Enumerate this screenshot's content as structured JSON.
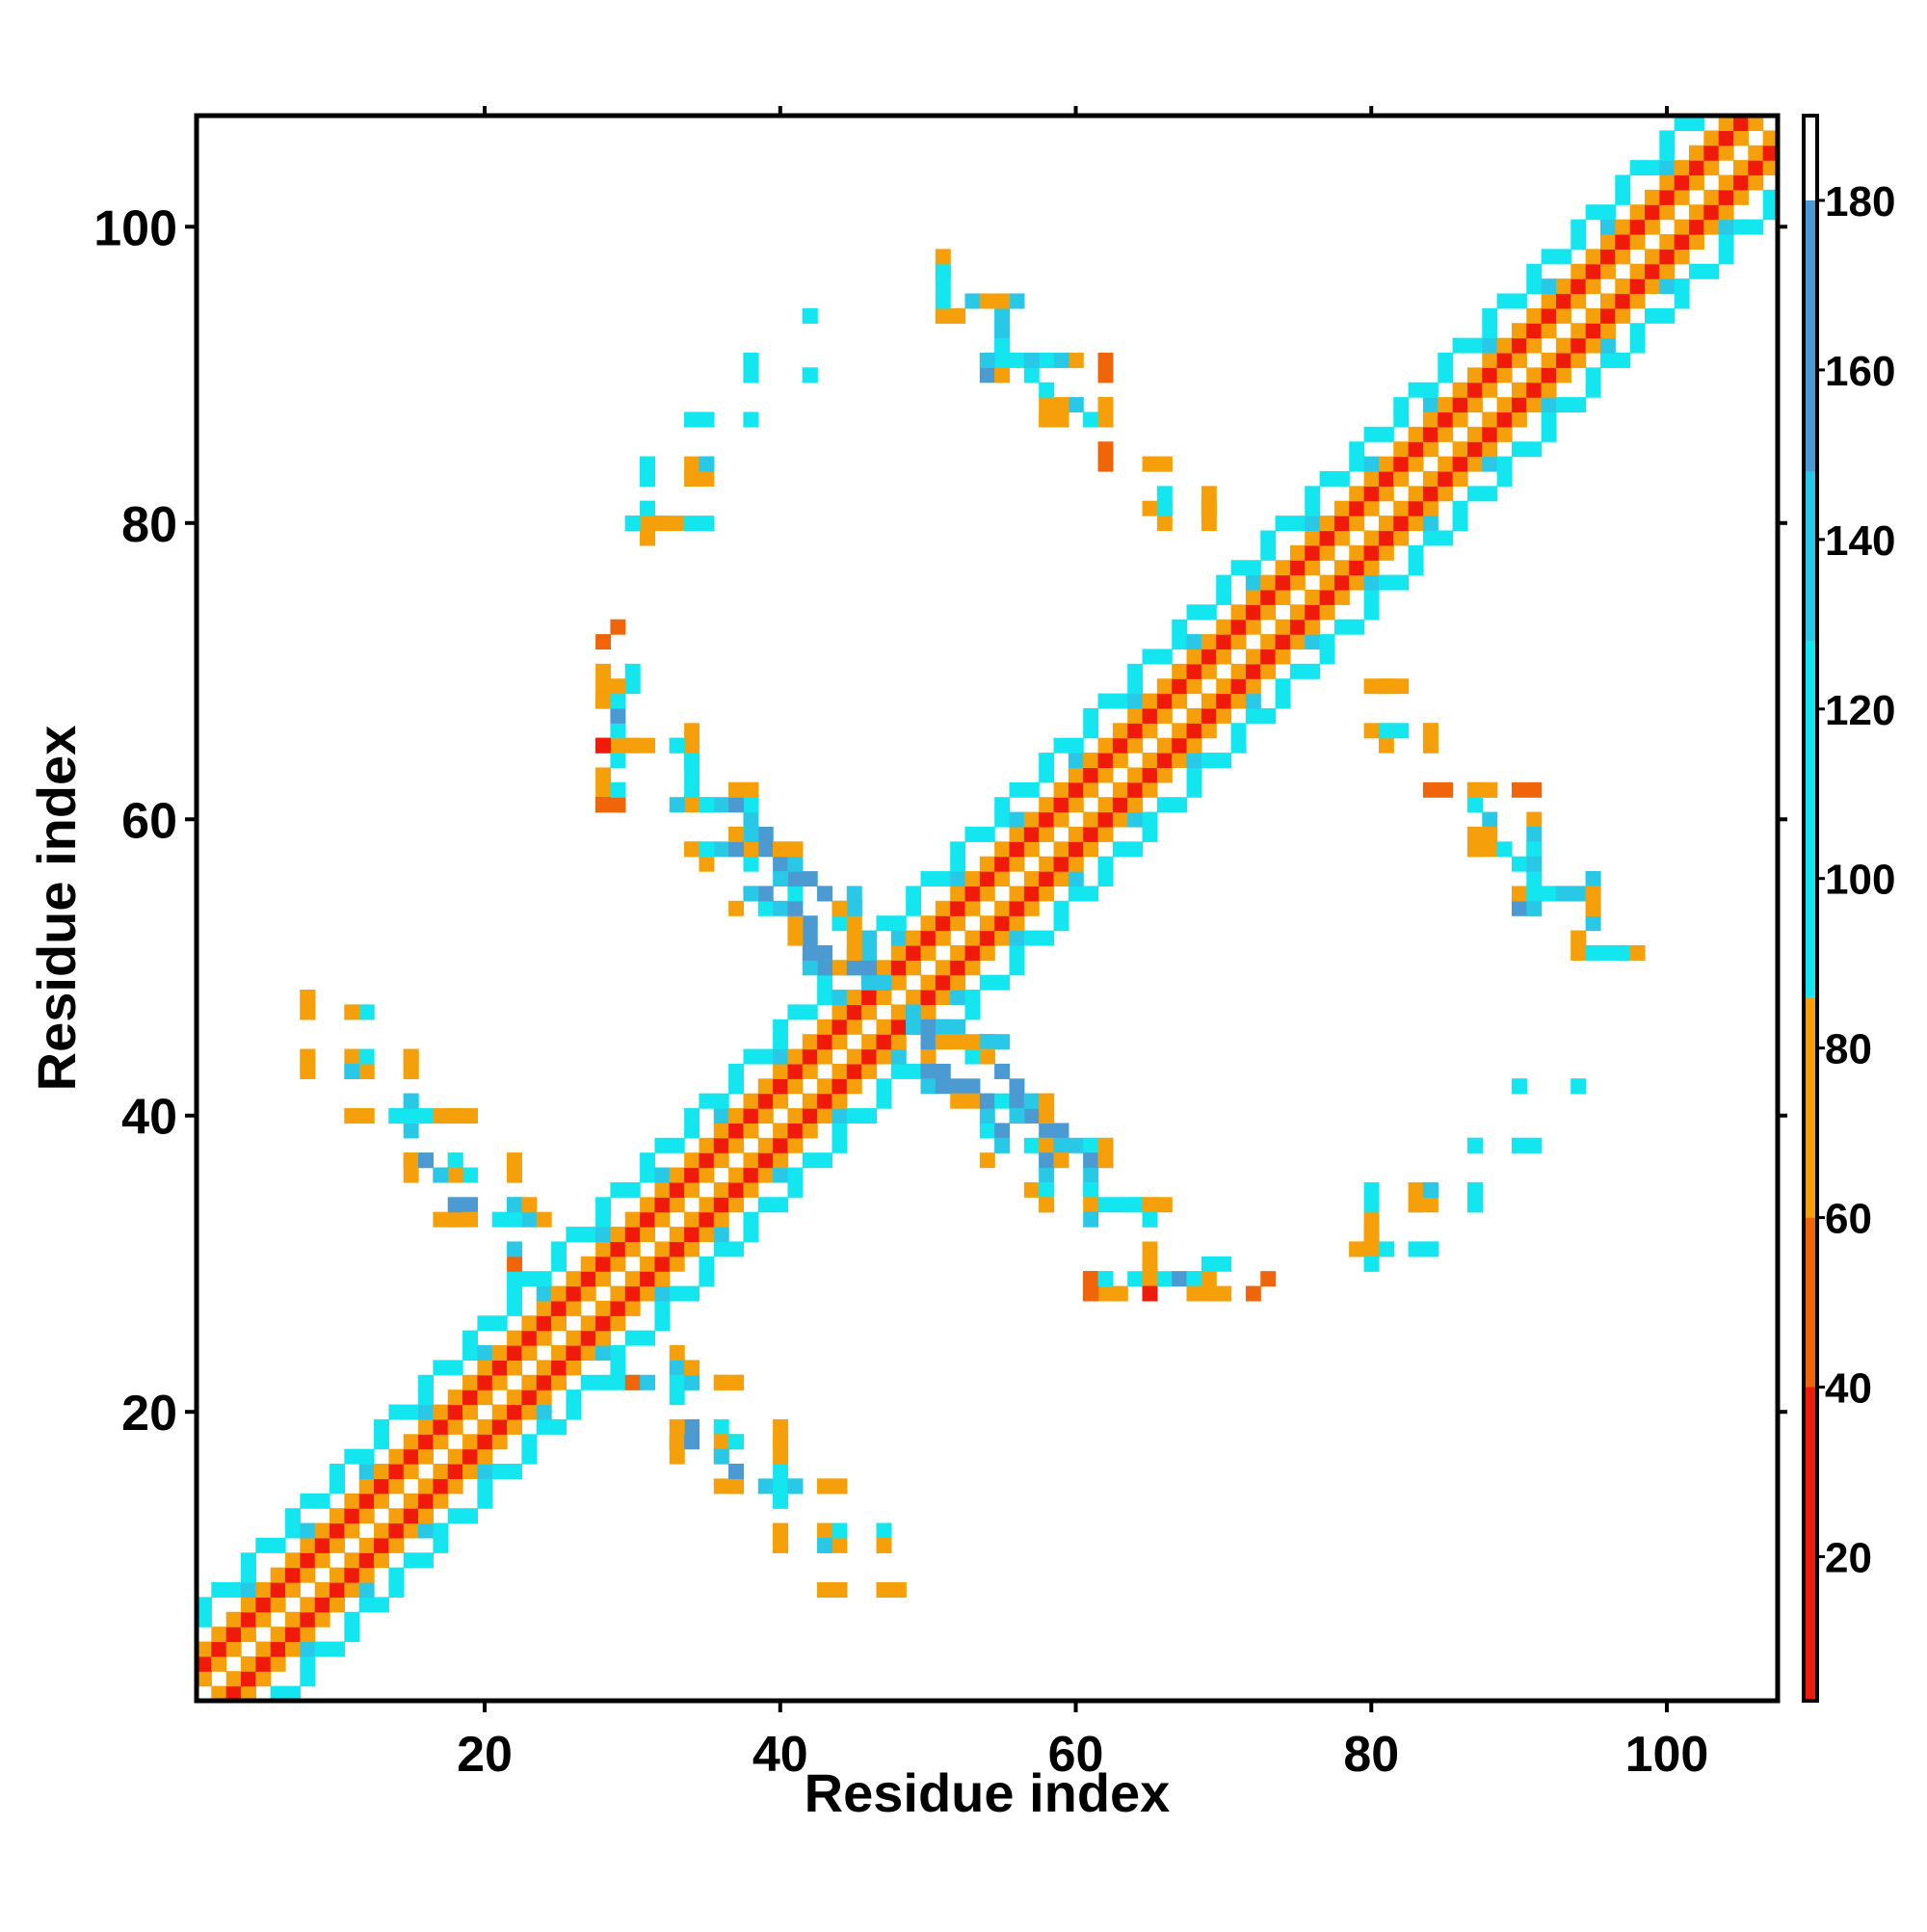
{
  "chart_data": {
    "type": "heatmap",
    "title": "",
    "xlabel": "Residue index",
    "ylabel": "Residue index",
    "xlim": [
      1,
      107
    ],
    "ylim": [
      1,
      107
    ],
    "x_ticks": [
      20,
      40,
      60,
      80,
      100
    ],
    "y_ticks": [
      20,
      40,
      60,
      80,
      100
    ],
    "grid": false,
    "colorbar": {
      "range": [
        3,
        190
      ],
      "ticks": [
        20,
        40,
        60,
        80,
        100,
        120,
        140,
        160,
        180
      ],
      "bands": [
        {
          "from": 3,
          "to": 40,
          "color": "#f01a0a"
        },
        {
          "from": 40,
          "to": 60,
          "color": "#f0640a"
        },
        {
          "from": 60,
          "to": 86,
          "color": "#f5a00a"
        },
        {
          "from": 86,
          "to": 128,
          "color": "#14e6f0"
        },
        {
          "from": 128,
          "to": 148,
          "color": "#28c8e6"
        },
        {
          "from": 148,
          "to": 180,
          "color": "#4b9bd2"
        },
        {
          "from": 180,
          "to": 190,
          "color": "#ffffff"
        }
      ]
    },
    "band_colors": [
      "#f01a0a",
      "#f0640a",
      "#f5a00a",
      "#14e6f0",
      "#28c8e6",
      "#4b9bd2"
    ],
    "diagonal_bands": [
      {
        "x_from": 1,
        "x_to": 107,
        "offsets": [
          -6,
          6
        ]
      }
    ],
    "points": [
      [
        28,
        72,
        1
      ],
      [
        28,
        69,
        2
      ],
      [
        28,
        68,
        1
      ],
      [
        29,
        68,
        3
      ],
      [
        30,
        69,
        3
      ],
      [
        29,
        67,
        3
      ],
      [
        28,
        65,
        0
      ],
      [
        29,
        65,
        2
      ],
      [
        30,
        65,
        3
      ],
      [
        31,
        65,
        2
      ],
      [
        33,
        65,
        4
      ],
      [
        34,
        65,
        2
      ],
      [
        34,
        64,
        3
      ],
      [
        28,
        62,
        2
      ],
      [
        29,
        62,
        3
      ],
      [
        28,
        61,
        0
      ],
      [
        29,
        61,
        0
      ],
      [
        34,
        62,
        3
      ],
      [
        35,
        61,
        4
      ],
      [
        36,
        61,
        4
      ],
      [
        37,
        61,
        3
      ],
      [
        38,
        62,
        3
      ],
      [
        37,
        62,
        4
      ],
      [
        38,
        61,
        3
      ],
      [
        34,
        58,
        2
      ],
      [
        35,
        58,
        4
      ],
      [
        36,
        58,
        4
      ],
      [
        37,
        58,
        3
      ],
      [
        38,
        58,
        2
      ],
      [
        39,
        58,
        5
      ],
      [
        40,
        58,
        2
      ],
      [
        41,
        58,
        2
      ],
      [
        37,
        59,
        3
      ],
      [
        38,
        59,
        5
      ],
      [
        39,
        59,
        5
      ],
      [
        40,
        57,
        5
      ],
      [
        41,
        57,
        3
      ],
      [
        42,
        56,
        5
      ],
      [
        43,
        55,
        4
      ],
      [
        44,
        54,
        4
      ],
      [
        45,
        54,
        5
      ],
      [
        38,
        55,
        3
      ],
      [
        37,
        54,
        2
      ],
      [
        39,
        54,
        3
      ],
      [
        40,
        54,
        4
      ],
      [
        41,
        54,
        4
      ],
      [
        42,
        53,
        5
      ],
      [
        44,
        53,
        3
      ],
      [
        42,
        52,
        5
      ],
      [
        43,
        51,
        5
      ],
      [
        43,
        50,
        4
      ],
      [
        44,
        50,
        2
      ],
      [
        45,
        51,
        4
      ],
      [
        46,
        51,
        4
      ],
      [
        46,
        49,
        5
      ],
      [
        47,
        49,
        4
      ],
      [
        8,
        48,
        2
      ],
      [
        8,
        47,
        2
      ],
      [
        11,
        47,
        3
      ],
      [
        12,
        47,
        2
      ],
      [
        8,
        44,
        2
      ],
      [
        8,
        43,
        2
      ],
      [
        11,
        44,
        2
      ],
      [
        12,
        43,
        2
      ],
      [
        11,
        43,
        4
      ],
      [
        15,
        44,
        2
      ],
      [
        15,
        43,
        2
      ],
      [
        11,
        40,
        2
      ],
      [
        12,
        40,
        2
      ],
      [
        14,
        40,
        4
      ],
      [
        15,
        41,
        3
      ],
      [
        15,
        40,
        5
      ],
      [
        16,
        40,
        3
      ],
      [
        18,
        40,
        2
      ],
      [
        19,
        40,
        2
      ],
      [
        15,
        37,
        2
      ],
      [
        16,
        37,
        5
      ],
      [
        17,
        36,
        2
      ],
      [
        18,
        37,
        2
      ],
      [
        19,
        36,
        3
      ],
      [
        22,
        37,
        2
      ],
      [
        22,
        36,
        2
      ],
      [
        19,
        34,
        5
      ],
      [
        18,
        33,
        2
      ],
      [
        19,
        33,
        2
      ],
      [
        21,
        33,
        3
      ],
      [
        22,
        34,
        3
      ],
      [
        23,
        33,
        4
      ],
      [
        24,
        33,
        2
      ],
      [
        22,
        30,
        4
      ],
      [
        29,
        22,
        3
      ],
      [
        30,
        22,
        1
      ],
      [
        31,
        22,
        4
      ],
      [
        33,
        22,
        3
      ],
      [
        34,
        22,
        4
      ],
      [
        34,
        23,
        2
      ],
      [
        36,
        22,
        2
      ],
      [
        37,
        22,
        2
      ],
      [
        33,
        18,
        2
      ],
      [
        34,
        18,
        5
      ],
      [
        33,
        17,
        2
      ],
      [
        36,
        18,
        2
      ],
      [
        37,
        18,
        3
      ],
      [
        36,
        17,
        4
      ],
      [
        40,
        18,
        2
      ],
      [
        40,
        17,
        2
      ],
      [
        36,
        15,
        2
      ],
      [
        37,
        15,
        2
      ],
      [
        37,
        16,
        5
      ],
      [
        39,
        15,
        4
      ],
      [
        40,
        15,
        3
      ],
      [
        40,
        14,
        3
      ],
      [
        41,
        15,
        4
      ],
      [
        43,
        15,
        2
      ],
      [
        44,
        15,
        2
      ],
      [
        40,
        12,
        2
      ],
      [
        40,
        11,
        2
      ],
      [
        43,
        12,
        2
      ],
      [
        43,
        11,
        4
      ],
      [
        44,
        12,
        3
      ],
      [
        47,
        12,
        3
      ],
      [
        47,
        11,
        2
      ],
      [
        43,
        8,
        2
      ],
      [
        44,
        8,
        2
      ],
      [
        47,
        8,
        2
      ],
      [
        48,
        8,
        2
      ],
      [
        49,
        46,
        4
      ],
      [
        50,
        46,
        5
      ],
      [
        51,
        46,
        4
      ],
      [
        52,
        46,
        4
      ],
      [
        50,
        45,
        5
      ],
      [
        51,
        45,
        2
      ],
      [
        52,
        45,
        2
      ],
      [
        53,
        45,
        2
      ],
      [
        54,
        45,
        4
      ],
      [
        55,
        45,
        4
      ],
      [
        54,
        44,
        2
      ],
      [
        55,
        43,
        5
      ],
      [
        50,
        43,
        5
      ],
      [
        50,
        42,
        4
      ],
      [
        51,
        42,
        5
      ],
      [
        52,
        41,
        2
      ],
      [
        53,
        41,
        2
      ],
      [
        54,
        41,
        5
      ],
      [
        55,
        41,
        3
      ],
      [
        56,
        41,
        5
      ],
      [
        57,
        41,
        4
      ],
      [
        58,
        41,
        2
      ],
      [
        56,
        40,
        4
      ],
      [
        58,
        40,
        2
      ],
      [
        55,
        39,
        5
      ],
      [
        55,
        38,
        4
      ],
      [
        57,
        38,
        3
      ],
      [
        58,
        38,
        2
      ],
      [
        59,
        38,
        4
      ],
      [
        60,
        38,
        4
      ],
      [
        61,
        38,
        3
      ],
      [
        62,
        38,
        2
      ],
      [
        58,
        37,
        5
      ],
      [
        59,
        37,
        2
      ],
      [
        61,
        37,
        5
      ],
      [
        62,
        37,
        2
      ],
      [
        57,
        35,
        2
      ],
      [
        58,
        35,
        3
      ],
      [
        58,
        34,
        2
      ],
      [
        61,
        35,
        3
      ],
      [
        61,
        34,
        2
      ],
      [
        61,
        33,
        4
      ],
      [
        63,
        34,
        3
      ],
      [
        64,
        34,
        3
      ],
      [
        65,
        34,
        2
      ],
      [
        66,
        34,
        2
      ],
      [
        65,
        33,
        3
      ],
      [
        61,
        29,
        1
      ],
      [
        61,
        28,
        1
      ],
      [
        62,
        29,
        3
      ],
      [
        63,
        28,
        2
      ],
      [
        64,
        29,
        3
      ],
      [
        65,
        29,
        2
      ],
      [
        65,
        30,
        2
      ],
      [
        65,
        28,
        0
      ],
      [
        66,
        29,
        3
      ],
      [
        67,
        29,
        5
      ],
      [
        68,
        29,
        3
      ],
      [
        69,
        29,
        2
      ],
      [
        68,
        28,
        2
      ],
      [
        70,
        30,
        3
      ],
      [
        70,
        28,
        2
      ],
      [
        73,
        29,
        1
      ],
      [
        51,
        97,
        2
      ],
      [
        51,
        96,
        3
      ],
      [
        51,
        94,
        2
      ],
      [
        52,
        94,
        2
      ],
      [
        53,
        95,
        4
      ],
      [
        54,
        95,
        2
      ],
      [
        55,
        95,
        3
      ],
      [
        56,
        95,
        4
      ],
      [
        55,
        94,
        3
      ],
      [
        55,
        93,
        3
      ],
      [
        55,
        92,
        4
      ],
      [
        54,
        91,
        2
      ],
      [
        54,
        90,
        5
      ],
      [
        55,
        91,
        4
      ],
      [
        56,
        91,
        3
      ],
      [
        57,
        91,
        3
      ],
      [
        58,
        91,
        2
      ],
      [
        60,
        91,
        2
      ],
      [
        62,
        91,
        1
      ],
      [
        57,
        90,
        3
      ],
      [
        58,
        88,
        2
      ],
      [
        58,
        87,
        2
      ],
      [
        59,
        87,
        2
      ],
      [
        60,
        88,
        4
      ],
      [
        61,
        87,
        4
      ],
      [
        62,
        88,
        2
      ],
      [
        62,
        87,
        1
      ],
      [
        62,
        85,
        1
      ],
      [
        65,
        84,
        2
      ],
      [
        66,
        84,
        2
      ],
      [
        66,
        82,
        3
      ],
      [
        65,
        81,
        2
      ],
      [
        66,
        81,
        2
      ],
      [
        69,
        82,
        2
      ],
      [
        69,
        81,
        2
      ],
      [
        42,
        94,
        3
      ],
      [
        42,
        90,
        3
      ],
      [
        38,
        91,
        3
      ],
      [
        38,
        90,
        3
      ],
      [
        34,
        87,
        3
      ],
      [
        35,
        87,
        3
      ],
      [
        38,
        87,
        4
      ],
      [
        31,
        84,
        3
      ],
      [
        31,
        83,
        3
      ],
      [
        34,
        84,
        2
      ],
      [
        35,
        84,
        4
      ],
      [
        34,
        83,
        3
      ],
      [
        30,
        80,
        3
      ],
      [
        31,
        80,
        3
      ],
      [
        32,
        80,
        2
      ],
      [
        31,
        81,
        2
      ],
      [
        31,
        79,
        2
      ],
      [
        33,
        80,
        2
      ],
      [
        35,
        80,
        3
      ],
      [
        80,
        69,
        2
      ],
      [
        81,
        69,
        2
      ],
      [
        80,
        66,
        2
      ],
      [
        81,
        66,
        3
      ],
      [
        84,
        66,
        2
      ],
      [
        84,
        65,
        2
      ],
      [
        84,
        62,
        1
      ],
      [
        87,
        62,
        2
      ],
      [
        87,
        61,
        3
      ],
      [
        88,
        62,
        2
      ],
      [
        90,
        62,
        1
      ],
      [
        87,
        59,
        2
      ],
      [
        87,
        58,
        2
      ],
      [
        88,
        59,
        2
      ],
      [
        89,
        58,
        3
      ],
      [
        91,
        59,
        4
      ],
      [
        91,
        58,
        3
      ],
      [
        91,
        57,
        4
      ],
      [
        90,
        55,
        2
      ],
      [
        91,
        55,
        3
      ],
      [
        91,
        54,
        4
      ],
      [
        92,
        55,
        3
      ],
      [
        93,
        55,
        4
      ],
      [
        94,
        55,
        4
      ],
      [
        95,
        56,
        4
      ],
      [
        95,
        55,
        2
      ],
      [
        95,
        54,
        2
      ],
      [
        94,
        52,
        2
      ],
      [
        94,
        51,
        2
      ],
      [
        95,
        51,
        3
      ],
      [
        97,
        51,
        3
      ],
      [
        98,
        51,
        2
      ],
      [
        90,
        42,
        3
      ],
      [
        94,
        42,
        3
      ],
      [
        87,
        38,
        3
      ],
      [
        90,
        38,
        3
      ],
      [
        91,
        38,
        3
      ],
      [
        87,
        35,
        3
      ],
      [
        87,
        34,
        3
      ],
      [
        83,
        35,
        2
      ],
      [
        84,
        35,
        4
      ],
      [
        83,
        34,
        2
      ],
      [
        80,
        34,
        3
      ],
      [
        80,
        31,
        2
      ],
      [
        81,
        31,
        3
      ],
      [
        80,
        30,
        3
      ],
      [
        83,
        31,
        3
      ],
      [
        84,
        31,
        3
      ],
      [
        80,
        32,
        2
      ],
      [
        79,
        31,
        2
      ]
    ]
  }
}
